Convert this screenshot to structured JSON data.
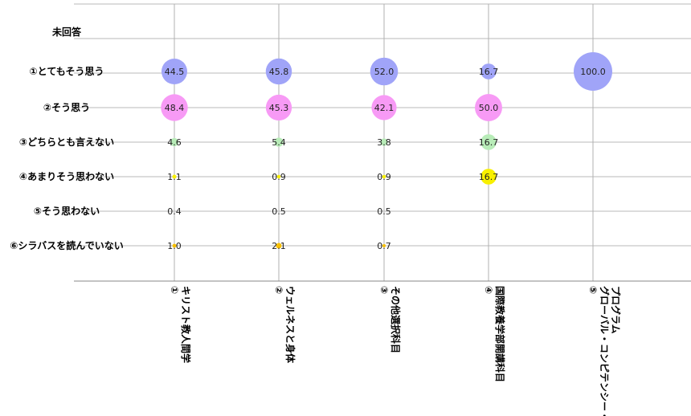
{
  "chart_data": {
    "type": "bubble",
    "title": "",
    "xlabel": "",
    "ylabel": "",
    "grid": true,
    "rows": [
      "未回答",
      "①とてもそう思う",
      "②そう思う",
      "③どちらとも言えない",
      "④あまりそう思わない",
      "⑤そう思わない",
      "⑥シラバスを読んでいない"
    ],
    "columns": [
      [
        "①",
        "キリスト教人間学"
      ],
      [
        "②",
        "ウェルネスと身体"
      ],
      [
        "③",
        "その他選択科目"
      ],
      [
        "④",
        "国際教養学部開講科目"
      ],
      [
        "⑤",
        "グローバル・コンピテンシー・",
        "プログラム"
      ]
    ],
    "series": [
      {
        "row": "①とてもそう思う",
        "color": "#a0a4f8",
        "values": [
          44.5,
          45.8,
          52.0,
          16.7,
          100.0
        ]
      },
      {
        "row": "②そう思う",
        "color": "#f79af5",
        "values": [
          48.4,
          45.3,
          42.1,
          50.0,
          null
        ]
      },
      {
        "row": "③どちらとも言えない",
        "color": "#b8ecb8",
        "values": [
          4.6,
          5.4,
          3.8,
          16.7,
          null
        ]
      },
      {
        "row": "④あまりそう思わない",
        "color": "#f8f000",
        "values": [
          1.1,
          0.9,
          0.9,
          16.7,
          null
        ]
      },
      {
        "row": "⑤そう思わない",
        "color": "#cccccc",
        "values": [
          0.4,
          0.5,
          0.5,
          null,
          null
        ]
      },
      {
        "row": "⑥シラバスを読んでいない",
        "color": "#f8c000",
        "values": [
          1.0,
          2.1,
          0.7,
          null,
          null
        ]
      }
    ],
    "value_labels": [
      [
        "44.5",
        "45.8",
        "52.0",
        "16.7",
        "100.0"
      ],
      [
        "48.4",
        "45.3",
        "42.1",
        "50.0",
        null
      ],
      [
        "4.6",
        "5.4",
        "3.8",
        "16.7",
        null
      ],
      [
        "1.1",
        "0.9",
        "0.9",
        "16.7",
        null
      ],
      [
        "0.4",
        "0.5",
        "0.5",
        null,
        null
      ],
      [
        "1.0",
        "2.1",
        "0.7",
        null,
        null
      ]
    ]
  }
}
